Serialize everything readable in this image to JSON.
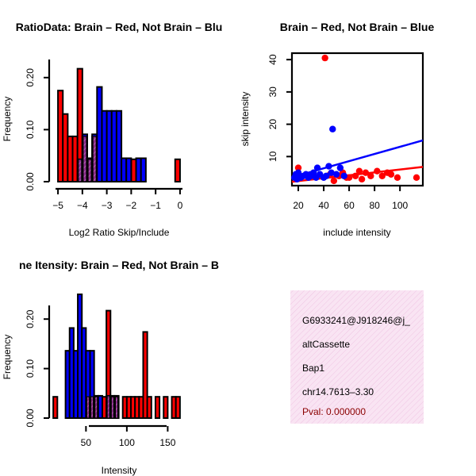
{
  "colors": {
    "red": "#ff0000",
    "blue": "#0000ff",
    "overlap": "#8e2e8e",
    "panel": "#f7dcef"
  },
  "chart_data": [
    {
      "type": "bar",
      "title": "RatioData: Brain – Red, Not Brain – Blu",
      "xlabel": "Log2 Ratio Skip/Include",
      "ylabel": "Frequency",
      "xlim": [
        -5.1,
        0.1
      ],
      "ylim": [
        0,
        0.25
      ],
      "xticks": [
        -5,
        -4,
        -3,
        -2,
        -1,
        0
      ],
      "yticks": [
        0.0,
        0.1,
        0.2
      ],
      "bin_width": 0.2,
      "series": [
        {
          "name": "Brain",
          "color": "red",
          "bins": [
            [
              -5.0,
              0.175
            ],
            [
              -4.8,
              0.13
            ],
            [
              -4.6,
              0.087
            ],
            [
              -4.4,
              0.087
            ],
            [
              -4.2,
              0.217
            ],
            [
              -4.0,
              0.087
            ],
            [
              -3.8,
              0.043
            ],
            [
              -3.6,
              0.087
            ],
            [
              -3.4,
              0.0
            ],
            [
              -3.2,
              0.0
            ],
            [
              -3.0,
              0.0
            ],
            [
              -2.8,
              0.0
            ],
            [
              -2.6,
              0.0
            ],
            [
              -2.4,
              0.0
            ],
            [
              -2.2,
              0.0
            ],
            [
              -2.0,
              0.043
            ],
            [
              -0.2,
              0.043
            ]
          ]
        },
        {
          "name": "Not Brain",
          "color": "blue",
          "bins": [
            [
              -4.2,
              0.043
            ],
            [
              -4.0,
              0.091
            ],
            [
              -3.8,
              0.045
            ],
            [
              -3.6,
              0.091
            ],
            [
              -3.4,
              0.182
            ],
            [
              -3.2,
              0.136
            ],
            [
              -3.0,
              0.136
            ],
            [
              -2.8,
              0.136
            ],
            [
              -2.6,
              0.136
            ],
            [
              -2.4,
              0.045
            ],
            [
              -2.2,
              0.045
            ],
            [
              -1.8,
              0.045
            ],
            [
              -1.6,
              0.045
            ]
          ]
        }
      ]
    },
    {
      "type": "scatter",
      "title": "Brain – Red, Not Brain – Blue",
      "xlabel": "include intensity",
      "ylabel": "skip intensity",
      "xlim": [
        15,
        118
      ],
      "ylim": [
        1,
        42
      ],
      "xticks": [
        20,
        40,
        60,
        80,
        100
      ],
      "yticks": [
        10,
        20,
        30,
        40
      ],
      "series": [
        {
          "name": "Brain",
          "color": "red",
          "points": [
            [
              20,
              6.5
            ],
            [
              41,
              40.5
            ],
            [
              48,
              2.5
            ],
            [
              52,
              4
            ],
            [
              55,
              5
            ],
            [
              60,
              3.5
            ],
            [
              65,
              4
            ],
            [
              68,
              5.5
            ],
            [
              70,
              3
            ],
            [
              73,
              5
            ],
            [
              77,
              4
            ],
            [
              82,
              5.5
            ],
            [
              86,
              4
            ],
            [
              90,
              5
            ],
            [
              93,
              4.5
            ],
            [
              98,
              3.5
            ],
            [
              113,
              3.5
            ],
            [
              45,
              4.5
            ],
            [
              58,
              3.5
            ]
          ]
        },
        {
          "name": "Not Brain",
          "color": "blue",
          "points": [
            [
              17,
              3.5
            ],
            [
              18,
              4.5
            ],
            [
              19,
              3
            ],
            [
              20,
              5
            ],
            [
              22,
              3.5
            ],
            [
              24,
              4
            ],
            [
              26,
              4.5
            ],
            [
              28,
              3.5
            ],
            [
              30,
              4
            ],
            [
              32,
              5
            ],
            [
              34,
              3.5
            ],
            [
              35,
              6.5
            ],
            [
              37,
              4.5
            ],
            [
              40,
              3.5
            ],
            [
              42,
              4
            ],
            [
              44,
              7
            ],
            [
              46,
              5
            ],
            [
              47,
              18.5
            ],
            [
              50,
              4.5
            ],
            [
              53,
              6.5
            ],
            [
              56,
              4
            ]
          ]
        }
      ],
      "fit_lines": [
        {
          "color": "blue",
          "from": [
            15,
            3.6
          ],
          "to": [
            118,
            15.0
          ]
        },
        {
          "color": "red",
          "from": [
            15,
            2.2
          ],
          "to": [
            118,
            6.8
          ]
        }
      ]
    },
    {
      "type": "bar",
      "title": "ne Itensity: Brain – Red, Not Brain – B",
      "xlabel": "Intensity",
      "ylabel": "Frequency",
      "xlim": [
        5,
        170
      ],
      "ylim": [
        0,
        0.25
      ],
      "xticks": [
        50,
        100,
        150
      ],
      "yticks": [
        0.0,
        0.1,
        0.2
      ],
      "bin_width": 5,
      "series": [
        {
          "name": "Brain",
          "color": "red",
          "bins": [
            [
              10,
              0.043
            ],
            [
              50,
              0.043
            ],
            [
              55,
              0.043
            ],
            [
              60,
              0.043
            ],
            [
              70,
              0.043
            ],
            [
              75,
              0.217
            ],
            [
              80,
              0.043
            ],
            [
              85,
              0.043
            ],
            [
              95,
              0.043
            ],
            [
              100,
              0.043
            ],
            [
              105,
              0.043
            ],
            [
              110,
              0.043
            ],
            [
              115,
              0.043
            ],
            [
              120,
              0.174
            ],
            [
              125,
              0.043
            ],
            [
              135,
              0.043
            ],
            [
              145,
              0.043
            ],
            [
              155,
              0.043
            ],
            [
              160,
              0.043
            ]
          ]
        },
        {
          "name": "Not Brain",
          "color": "blue",
          "bins": [
            [
              25,
              0.136
            ],
            [
              30,
              0.182
            ],
            [
              35,
              0.136
            ],
            [
              40,
              0.25
            ],
            [
              45,
              0.182
            ],
            [
              50,
              0.136
            ],
            [
              55,
              0.136
            ],
            [
              60,
              0.045
            ],
            [
              65,
              0.045
            ],
            [
              75,
              0.045
            ],
            [
              80,
              0.045
            ],
            [
              85,
              0.045
            ]
          ]
        }
      ]
    }
  ],
  "info": {
    "id": "G6933241@J918246@j_",
    "type": "altCassette",
    "gene": "Bap1",
    "location": "chr14.7613–3.30",
    "pval": "Pval: 0.000000"
  }
}
